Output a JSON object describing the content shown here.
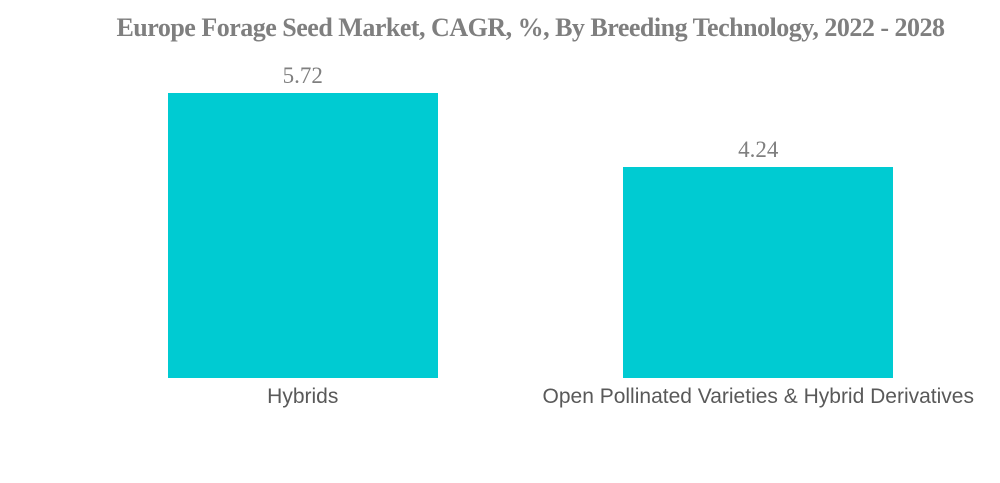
{
  "chart_data": {
    "type": "bar",
    "title": "Europe Forage Seed Market, CAGR, %, By Breeding Technology, 2022 - 2028",
    "categories": [
      "Hybrids",
      "Open Pollinated Varieties & Hybrid Derivatives"
    ],
    "values": [
      5.72,
      4.24
    ],
    "value_labels": [
      "5.72",
      "4.24"
    ],
    "xlabel": "",
    "ylabel": "",
    "ylim": [
      0,
      5.72
    ],
    "grid": false,
    "legend": false,
    "axis_lines": false,
    "bar_color": "#00CBD2",
    "title_color": "#7f7f7f",
    "value_label_color": "#7f7f7f",
    "category_label_color": "#595959",
    "background_color": "#ffffff"
  }
}
